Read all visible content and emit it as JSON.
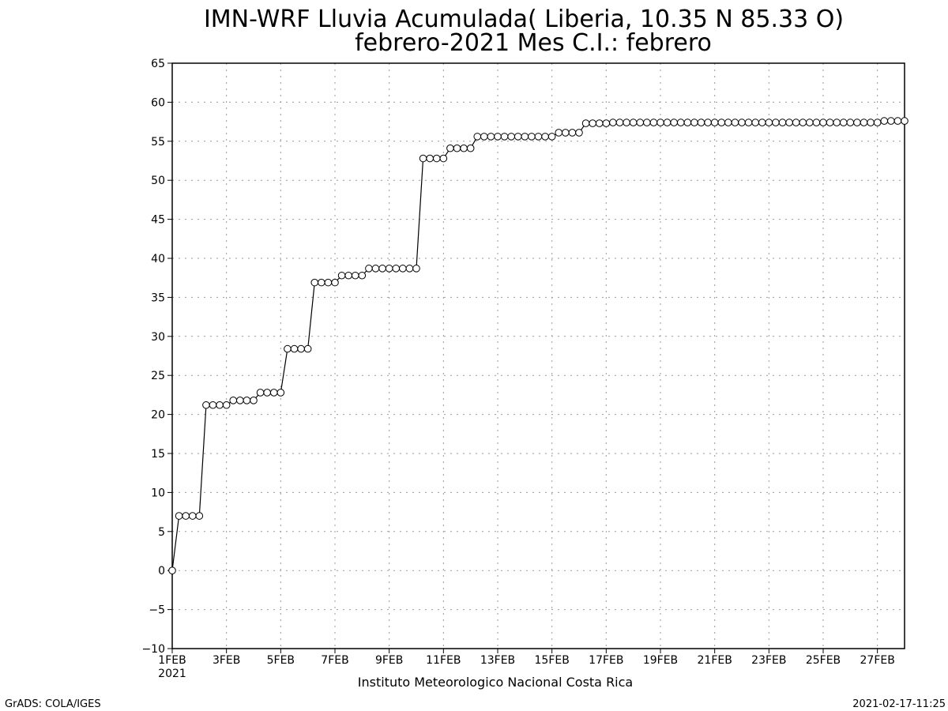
{
  "chart_data": {
    "type": "line",
    "title": "IMN-WRF  Lluvia Acumulada( Liberia, 10.35  N 85.33  O)",
    "subtitle": "febrero-2021 Mes C.I.: febrero",
    "xlabel": "",
    "ylabel": "",
    "ylim": [
      -10,
      65
    ],
    "yticks": [
      -10,
      -5,
      0,
      5,
      10,
      15,
      20,
      25,
      30,
      35,
      40,
      45,
      50,
      55,
      60,
      65
    ],
    "xlim": [
      "2021-02-01T00",
      "2021-02-28T00"
    ],
    "xticks": [
      {
        "day": 1,
        "label": "1FEB",
        "sublabel": "2021"
      },
      {
        "day": 3,
        "label": "3FEB"
      },
      {
        "day": 5,
        "label": "5FEB"
      },
      {
        "day": 7,
        "label": "7FEB"
      },
      {
        "day": 9,
        "label": "9FEB"
      },
      {
        "day": 11,
        "label": "11FEB"
      },
      {
        "day": 13,
        "label": "13FEB"
      },
      {
        "day": 15,
        "label": "15FEB"
      },
      {
        "day": 17,
        "label": "17FEB"
      },
      {
        "day": 19,
        "label": "19FEB"
      },
      {
        "day": 21,
        "label": "21FEB"
      },
      {
        "day": 23,
        "label": "23FEB"
      },
      {
        "day": 25,
        "label": "25FEB"
      },
      {
        "day": 27,
        "label": "27FEB"
      }
    ],
    "grid": true,
    "marker": "open-circle",
    "series": [
      {
        "time_step": "6-hourly",
        "x_start": "2021-02-01T00",
        "values": [
          0,
          7,
          7,
          7,
          7,
          21.2,
          21.2,
          21.2,
          21.2,
          21.8,
          21.8,
          21.8,
          21.8,
          22.8,
          22.8,
          22.8,
          22.8,
          28.4,
          28.4,
          28.4,
          28.4,
          36.9,
          36.9,
          36.9,
          36.9,
          37.8,
          37.8,
          37.8,
          37.8,
          38.7,
          38.7,
          38.7,
          38.7,
          38.7,
          38.7,
          38.7,
          38.7,
          52.8,
          52.8,
          52.8,
          52.8,
          54.1,
          54.1,
          54.1,
          54.1,
          55.6,
          55.6,
          55.6,
          55.6,
          55.6,
          55.6,
          55.6,
          55.6,
          55.6,
          55.6,
          55.6,
          55.6,
          56.1,
          56.1,
          56.1,
          56.1,
          57.3,
          57.3,
          57.3,
          57.3,
          57.4,
          57.4,
          57.4,
          57.4,
          57.4,
          57.4,
          57.4,
          57.4,
          57.4,
          57.4,
          57.4,
          57.4,
          57.4,
          57.4,
          57.4,
          57.4,
          57.4,
          57.4,
          57.4,
          57.4,
          57.4,
          57.4,
          57.4,
          57.4,
          57.4,
          57.4,
          57.4,
          57.4,
          57.4,
          57.4,
          57.4,
          57.4,
          57.4,
          57.4,
          57.4,
          57.4,
          57.4,
          57.4,
          57.4,
          57.4,
          57.6,
          57.6,
          57.6,
          57.6
        ]
      }
    ]
  },
  "footer": {
    "institution": "Instituto Meteorologico Nacional Costa Rica",
    "software": "GrADS: COLA/IGES",
    "timestamp": "2021-02-17-11:25"
  }
}
